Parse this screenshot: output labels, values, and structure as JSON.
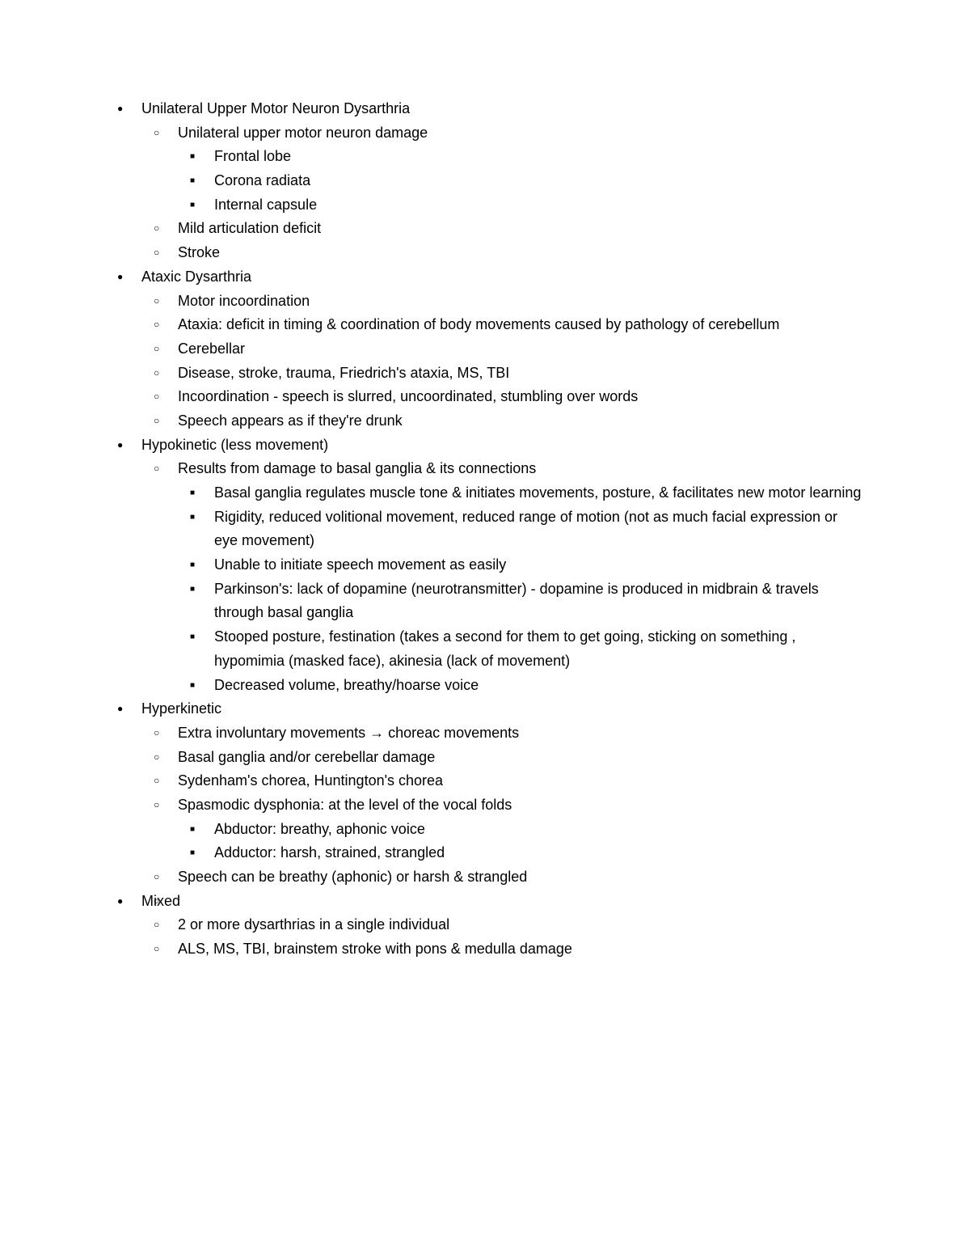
{
  "document": {
    "background_color": "#ffffff",
    "text_color": "#000000",
    "font_family": "Arial",
    "font_size": 18,
    "line_height": 1.65,
    "bullets": {
      "level1": "●",
      "level2": "○",
      "level3": "■"
    },
    "items": [
      {
        "text": "Unilateral Upper Motor Neuron Dysarthria",
        "children": [
          {
            "text": "Unilateral upper motor neuron damage",
            "children": [
              {
                "text": "Frontal lobe"
              },
              {
                "text": "Corona radiata"
              },
              {
                "text": "Internal capsule"
              }
            ]
          },
          {
            "text": "Mild articulation deficit"
          },
          {
            "text": "Stroke"
          }
        ]
      },
      {
        "text": "Ataxic Dysarthria",
        "children": [
          {
            "text": "Motor incoordination"
          },
          {
            "text": "Ataxia: deficit in timing & coordination of body movements caused by pathology of cerebellum"
          },
          {
            "text": "Cerebellar"
          },
          {
            "text": "Disease, stroke, trauma, Friedrich's ataxia, MS, TBI"
          },
          {
            "text": "Incoordination - speech is slurred, uncoordinated, stumbling over words"
          },
          {
            "text": "Speech appears as if they're drunk"
          }
        ]
      },
      {
        "text": "Hypokinetic (less movement)",
        "children": [
          {
            "text": "Results from damage to basal ganglia & its connections",
            "children": [
              {
                "text": "Basal ganglia regulates muscle tone & initiates movements, posture, & facilitates new motor learning"
              },
              {
                "text": "Rigidity, reduced volitional movement, reduced range of motion (not as much facial expression or eye movement)"
              },
              {
                "text": "Unable to initiate speech movement as easily"
              },
              {
                "text": "Parkinson's: lack of dopamine (neurotransmitter) - dopamine is produced in midbrain & travels through basal ganglia"
              },
              {
                "text": "Stooped posture, festination (takes a second for them to get going, sticking on something , hypomimia (masked face), akinesia (lack of movement)"
              },
              {
                "text": "Decreased volume, breathy/hoarse voice"
              }
            ]
          }
        ]
      },
      {
        "text": "Hyperkinetic",
        "children": [
          {
            "text": "Extra involuntary movements → choreac movements"
          },
          {
            "text": "Basal ganglia and/or cerebellar damage"
          },
          {
            "text": "Sydenham's chorea, Huntington's chorea"
          },
          {
            "text": "Spasmodic dysphonia: at the level of the vocal folds",
            "children": [
              {
                "text": "Abductor: breathy, aphonic voice"
              },
              {
                "text": "Adductor: harsh, strained, strangled"
              }
            ]
          },
          {
            "text": "Speech can be breathy (aphonic) or harsh & strangled"
          },
          {
            "text": ""
          }
        ]
      },
      {
        "text": "Mixed",
        "children": [
          {
            "text": " 2 or more dysarthrias in a single individual"
          },
          {
            "text": "ALS, MS, TBI, brainstem stroke with pons & medulla damage"
          }
        ]
      }
    ]
  }
}
